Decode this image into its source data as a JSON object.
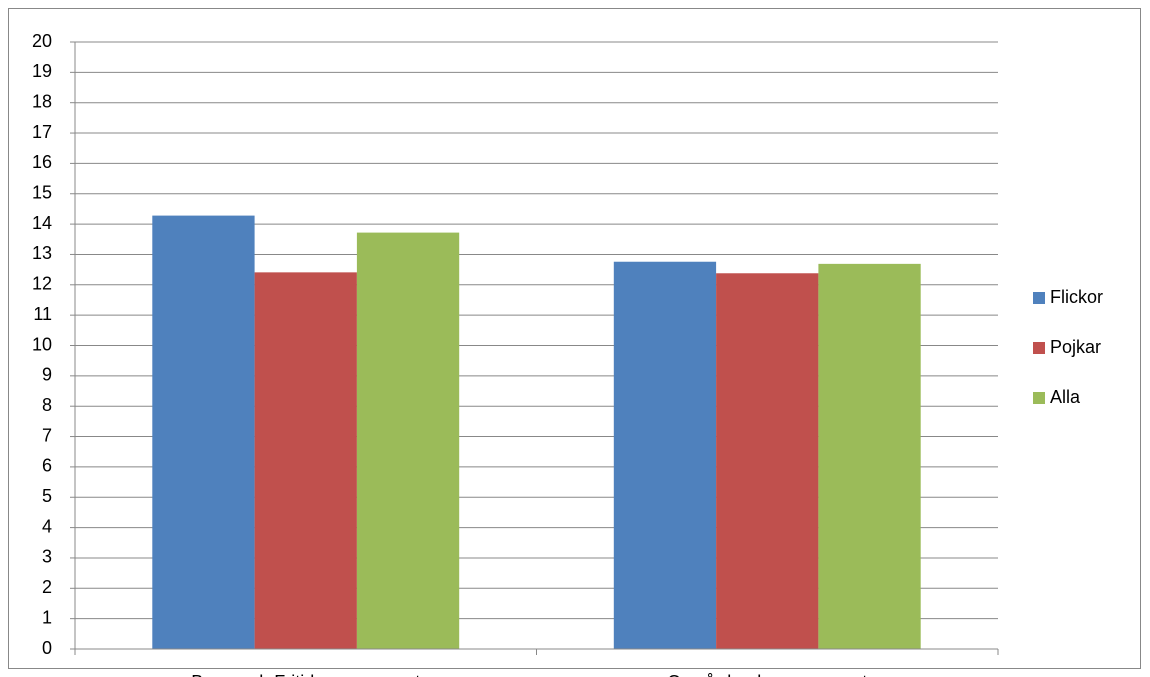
{
  "chart_data": {
    "type": "bar",
    "categories": [
      "Barn- och Fritidsprogrammet",
      "Omvårdnadsprogrammet"
    ],
    "series": [
      {
        "name": "Flickor",
        "color": "#4f81bd",
        "values": [
          14.28,
          12.76
        ]
      },
      {
        "name": "Pojkar",
        "color": "#c0504d",
        "values": [
          12.41,
          12.38
        ]
      },
      {
        "name": "Alla",
        "color": "#9bbb59",
        "values": [
          13.72,
          12.69
        ]
      }
    ],
    "ylim": [
      0,
      20
    ],
    "yticks": [
      0,
      1,
      2,
      3,
      4,
      5,
      6,
      7,
      8,
      9,
      10,
      11,
      12,
      13,
      14,
      15,
      16,
      17,
      18,
      19,
      20
    ],
    "grid": true,
    "legend": "right"
  }
}
